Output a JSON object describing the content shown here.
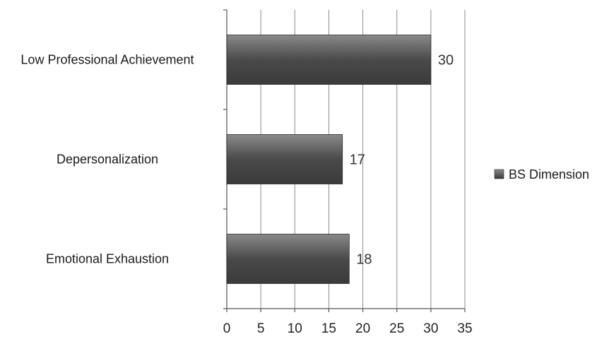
{
  "chart_data": {
    "type": "bar",
    "orientation": "horizontal",
    "categories": [
      "Low Professional Achievement",
      "Depersonalization",
      "Emotional Exhaustion"
    ],
    "series": [
      {
        "name": "BS Dimension",
        "values": [
          30,
          17,
          18
        ]
      }
    ],
    "data_labels": [
      "30",
      "17",
      "18"
    ],
    "title": "",
    "xlabel": "",
    "ylabel": "",
    "xlim": [
      0,
      35
    ],
    "x_ticks": [
      0,
      5,
      10,
      15,
      20,
      25,
      30,
      35
    ],
    "x_tick_labels": [
      "0",
      "5",
      "10",
      "15",
      "20",
      "25",
      "30",
      "35"
    ],
    "grid": true,
    "legend_position": "right",
    "colors": {
      "bar_dark": "#3c3c3c",
      "bar_light": "#8a8a8a",
      "grid": "#8c8c8c",
      "axis": "#555555"
    }
  }
}
